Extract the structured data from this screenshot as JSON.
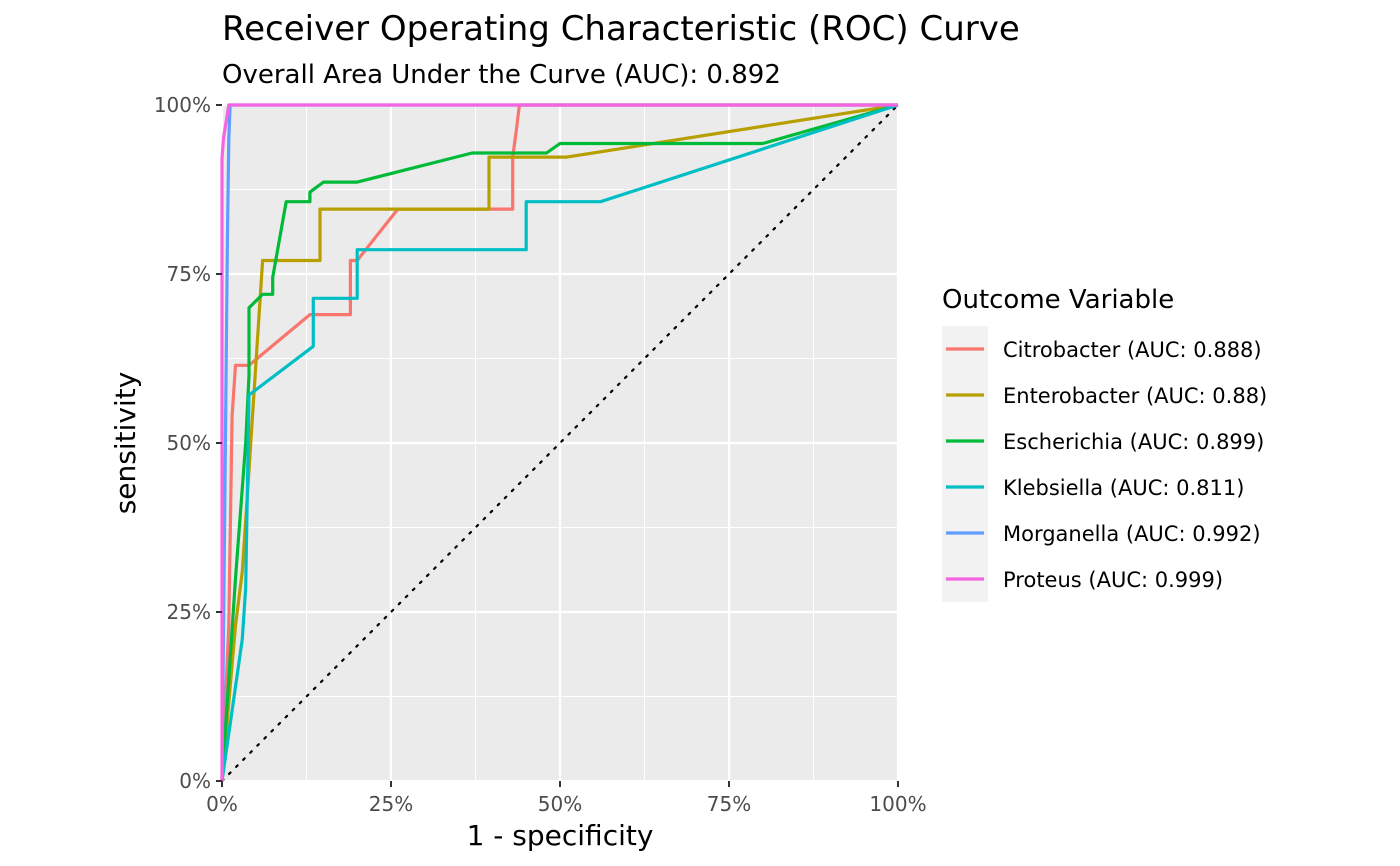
{
  "chart_data": {
    "type": "line",
    "title": "Receiver Operating Characteristic (ROC) Curve",
    "subtitle": "Overall Area Under the Curve (AUC): 0.892",
    "xlabel": "1 - specificity",
    "ylabel": "sensitivity",
    "xlim": [
      0,
      1
    ],
    "ylim": [
      0,
      1
    ],
    "x_ticks": [
      "0%",
      "25%",
      "50%",
      "75%",
      "100%"
    ],
    "y_ticks": [
      "0%",
      "25%",
      "50%",
      "75%",
      "100%"
    ],
    "grid": true,
    "legend_title": "Outcome Variable",
    "legend_position": "right",
    "reference_line": {
      "style": "dotted",
      "from": [
        0,
        0
      ],
      "to": [
        1,
        1
      ]
    },
    "series": [
      {
        "name": "Citrobacter (AUC: 0.888)",
        "color": "#F8766D",
        "x": [
          0,
          0.01,
          0.015,
          0.02,
          0.025,
          0.03,
          0.04,
          0.13,
          0.19,
          0.19,
          0.2,
          0.26,
          0.43,
          0.43,
          0.435,
          0.44,
          1.0
        ],
        "y": [
          0,
          0.23,
          0.54,
          0.615,
          0.615,
          0.615,
          0.615,
          0.69,
          0.69,
          0.77,
          0.77,
          0.846,
          0.846,
          0.923,
          0.96,
          1.0,
          1.0
        ]
      },
      {
        "name": "Enterobacter (AUC: 0.88)",
        "color": "#B79F00",
        "x": [
          0,
          0.02,
          0.03,
          0.04,
          0.05,
          0.06,
          0.145,
          0.145,
          0.395,
          0.395,
          0.51,
          1.0
        ],
        "y": [
          0,
          0.23,
          0.31,
          0.46,
          0.615,
          0.77,
          0.77,
          0.846,
          0.846,
          0.923,
          0.923,
          1.0
        ]
      },
      {
        "name": "Escherichia (AUC: 0.899)",
        "color": "#00BA38",
        "x": [
          0,
          0.02,
          0.035,
          0.04,
          0.04,
          0.06,
          0.075,
          0.075,
          0.095,
          0.13,
          0.13,
          0.15,
          0.2,
          0.37,
          0.48,
          0.5,
          0.8,
          1.0
        ],
        "y": [
          0,
          0.3,
          0.5,
          0.6,
          0.7,
          0.72,
          0.72,
          0.745,
          0.857,
          0.857,
          0.871,
          0.886,
          0.886,
          0.929,
          0.929,
          0.943,
          0.943,
          1.0
        ]
      },
      {
        "name": "Klebsiella (AUC: 0.811)",
        "color": "#00BFC4",
        "x": [
          0,
          0.01,
          0.03,
          0.035,
          0.04,
          0.135,
          0.135,
          0.2,
          0.2,
          0.45,
          0.45,
          0.56,
          1.0
        ],
        "y": [
          0,
          0.07,
          0.21,
          0.286,
          0.571,
          0.643,
          0.714,
          0.714,
          0.786,
          0.786,
          0.857,
          0.857,
          1.0
        ]
      },
      {
        "name": "Morganella (AUC: 0.992)",
        "color": "#619CFF",
        "x": [
          0,
          0.005,
          0.008,
          0.01,
          0.012,
          1.0
        ],
        "y": [
          0,
          0.5,
          0.8,
          0.95,
          1.0,
          1.0
        ]
      },
      {
        "name": "Proteus (AUC: 0.999)",
        "color": "#F564E3",
        "x": [
          0,
          0,
          0.002,
          0.01,
          1.0
        ],
        "y": [
          0,
          0.92,
          0.95,
          1.0,
          1.0
        ]
      }
    ]
  }
}
